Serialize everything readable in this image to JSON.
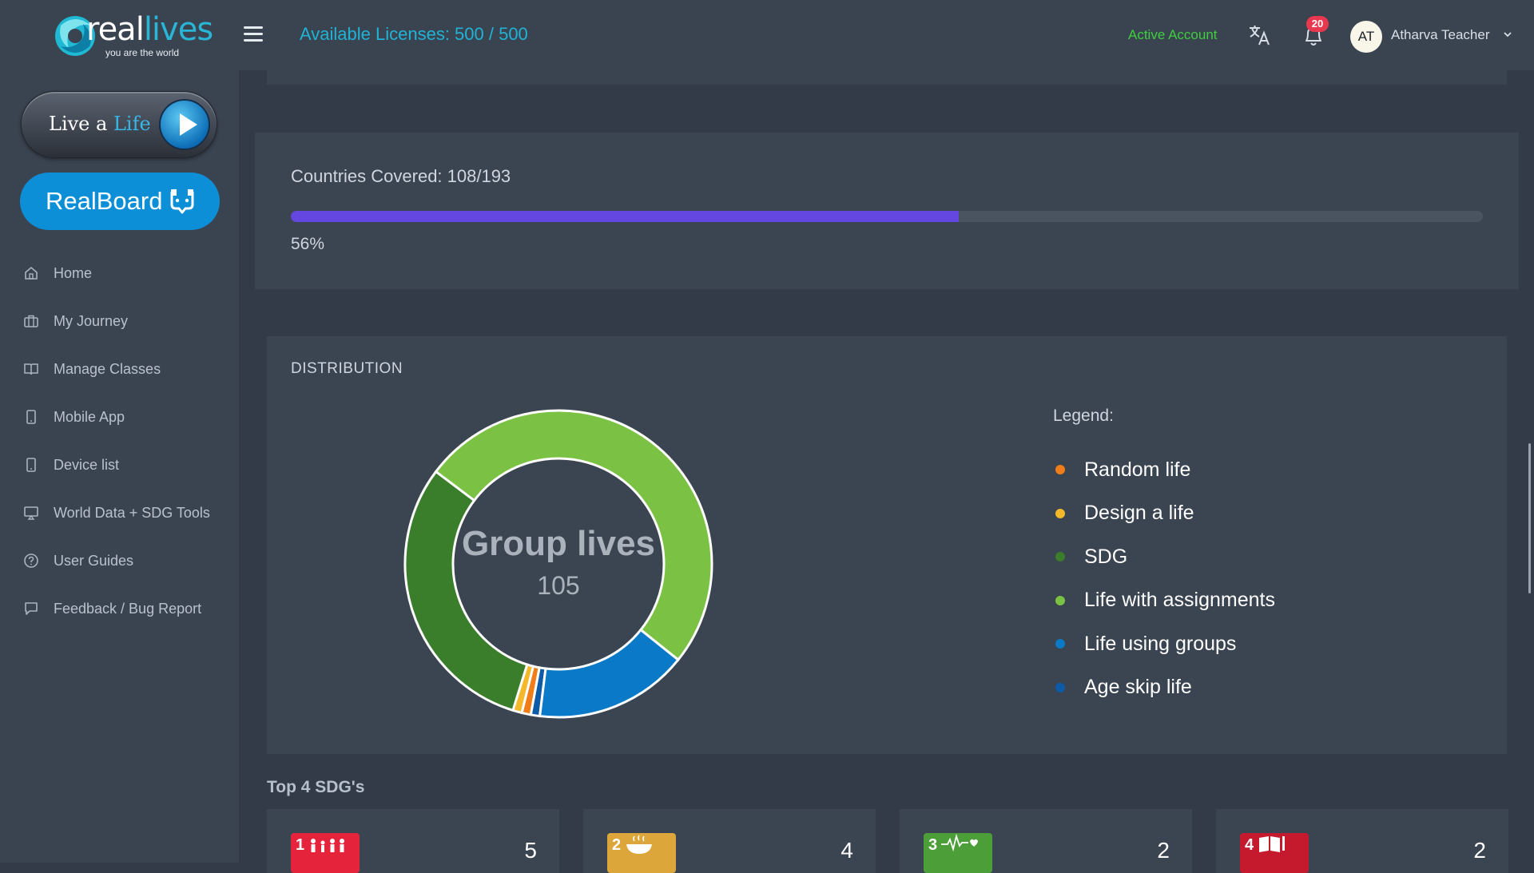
{
  "brand": {
    "name_part1": "real",
    "name_part2": "lives",
    "tagline": "you are the world"
  },
  "sidebar": {
    "live_button": {
      "label_part1": "Live a",
      "label_part2": "Life"
    },
    "realboard_button": {
      "label": "RealBoard"
    },
    "items": [
      {
        "label": "Home",
        "icon": "home-icon"
      },
      {
        "label": "My Journey",
        "icon": "briefcase-icon"
      },
      {
        "label": "Manage Classes",
        "icon": "book-icon"
      },
      {
        "label": "Mobile App",
        "icon": "mobile-icon"
      },
      {
        "label": "Device list",
        "icon": "device-icon"
      },
      {
        "label": "World Data + SDG Tools",
        "icon": "monitor-icon"
      },
      {
        "label": "User Guides",
        "icon": "help-circle-icon"
      },
      {
        "label": "Feedback / Bug Report",
        "icon": "message-icon"
      }
    ]
  },
  "header": {
    "licenses": "Available Licenses: 500 / 500",
    "active_account": "Active Account",
    "notification_count": "20",
    "avatar_initials": "AT",
    "user_name": "Atharva Teacher"
  },
  "countries": {
    "title": "Countries Covered: 108/193",
    "percent_label": "56%",
    "progress_fraction": 0.56
  },
  "distribution": {
    "title": "DISTRIBUTION",
    "center_label": "Group lives",
    "center_value": "105",
    "legend_title": "Legend:",
    "legend": [
      {
        "label": "Random life",
        "color": "#f07d1a"
      },
      {
        "label": "Design a life",
        "color": "#f5b82a"
      },
      {
        "label": "SDG",
        "color": "#3a7d2a"
      },
      {
        "label": "Life with assignments",
        "color": "#7bc143"
      },
      {
        "label": "Life using groups",
        "color": "#0a7ac8"
      },
      {
        "label": "Age skip life",
        "color": "#0d5aa7"
      }
    ]
  },
  "chart_data": {
    "type": "pie",
    "title": "DISTRIBUTION",
    "categories": [
      "Random life",
      "Design a life",
      "SDG",
      "Life with assignments",
      "Life using groups",
      "Age skip life"
    ],
    "values": [
      1,
      1,
      32,
      53,
      17,
      1
    ],
    "colors": [
      "#f07d1a",
      "#f5b82a",
      "#3a7d2a",
      "#7bc143",
      "#0a7ac8",
      "#0d5aa7"
    ],
    "legend_position": "right"
  },
  "sdg": {
    "heading": "Top 4 SDG's",
    "cards": [
      {
        "number": "1",
        "count": "5",
        "color": "#e5243b"
      },
      {
        "number": "2",
        "count": "4",
        "color": "#dda63a"
      },
      {
        "number": "3",
        "count": "2",
        "color": "#4c9f38"
      },
      {
        "number": "4",
        "count": "2",
        "color": "#c5192d"
      }
    ]
  }
}
